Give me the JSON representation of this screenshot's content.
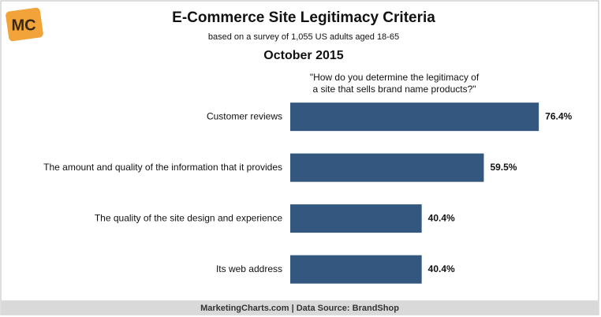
{
  "chart_data": {
    "type": "bar",
    "orientation": "horizontal",
    "logo": "MC",
    "title": "E-Commerce Site Legitimacy Criteria",
    "subtitle": "based on a survey of 1,055 US adults aged 18-65",
    "date": "October 2015",
    "question": [
      "\"How do you determine the legitimacy of",
      "a site that sells brand name products?\""
    ],
    "categories": [
      "Customer reviews",
      "The amount and quality of the information that it provides",
      "The quality of the site design and experience",
      "Its web address"
    ],
    "values": [
      76.4,
      59.5,
      40.4,
      40.4
    ],
    "value_labels": [
      "76.4%",
      "59.5%",
      "40.4%",
      "40.4%"
    ],
    "color": "#34577f",
    "source": "MarketingCharts.com | Data Source: BrandShop"
  }
}
